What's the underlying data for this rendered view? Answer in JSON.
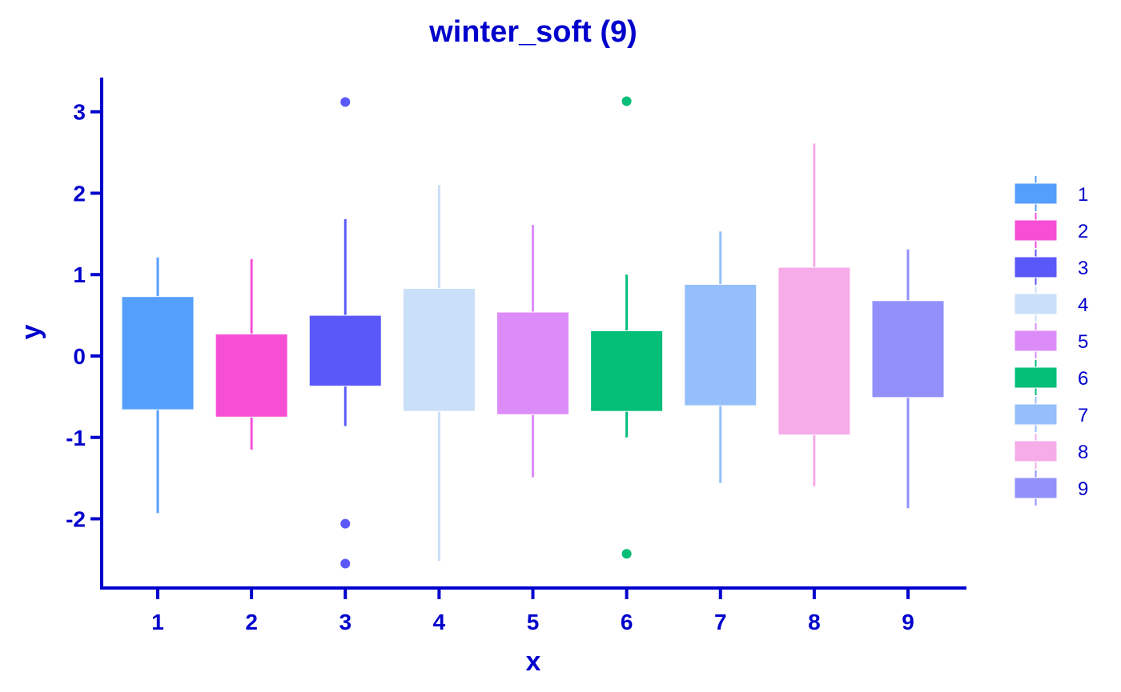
{
  "chart_data": {
    "type": "boxplot",
    "title": "winter_soft (9)",
    "xlabel": "x",
    "ylabel": "y",
    "categories": [
      "1",
      "2",
      "3",
      "4",
      "5",
      "6",
      "7",
      "8",
      "9"
    ],
    "y_ticks": [
      "-2",
      "-1",
      "0",
      "1",
      "2",
      "3"
    ],
    "ylim": [
      -2.85,
      3.42
    ],
    "grid": false,
    "legend": "right",
    "legend_entries": [
      "1",
      "2",
      "3",
      "4",
      "5",
      "6",
      "7",
      "8",
      "9"
    ],
    "text_color": "#0000CC",
    "boxes": [
      {
        "category": "1",
        "color": "#559FFC",
        "whisker_low": -1.93,
        "q1": -0.66,
        "q3": 0.73,
        "whisker_high": 1.21,
        "outliers": []
      },
      {
        "category": "2",
        "color": "#F64FD6",
        "whisker_low": -1.15,
        "q1": -0.75,
        "q3": 0.27,
        "whisker_high": 1.19,
        "outliers": []
      },
      {
        "category": "3",
        "color": "#5B58FA",
        "whisker_low": -0.86,
        "q1": -0.37,
        "q3": 0.5,
        "whisker_high": 1.68,
        "outliers": [
          3.12,
          -2.06,
          -2.55
        ]
      },
      {
        "category": "4",
        "color": "#CADFF8",
        "whisker_low": -2.52,
        "q1": -0.68,
        "q3": 0.83,
        "whisker_high": 2.1,
        "outliers": []
      },
      {
        "category": "5",
        "color": "#DC8CF9",
        "whisker_low": -1.49,
        "q1": -0.72,
        "q3": 0.54,
        "whisker_high": 1.61,
        "outliers": []
      },
      {
        "category": "6",
        "color": "#05BE78",
        "whisker_low": -1.0,
        "q1": -0.68,
        "q3": 0.31,
        "whisker_high": 1.0,
        "outliers": [
          3.13,
          -2.43
        ]
      },
      {
        "category": "7",
        "color": "#94BFFA",
        "whisker_low": -1.56,
        "q1": -0.61,
        "q3": 0.88,
        "whisker_high": 1.53,
        "outliers": []
      },
      {
        "category": "8",
        "color": "#F5ACE8",
        "whisker_low": -1.6,
        "q1": -0.97,
        "q3": 1.09,
        "whisker_high": 2.61,
        "outliers": []
      },
      {
        "category": "9",
        "color": "#9290FB",
        "whisker_low": -1.87,
        "q1": -0.51,
        "q3": 0.68,
        "whisker_high": 1.31,
        "outliers": []
      }
    ]
  }
}
